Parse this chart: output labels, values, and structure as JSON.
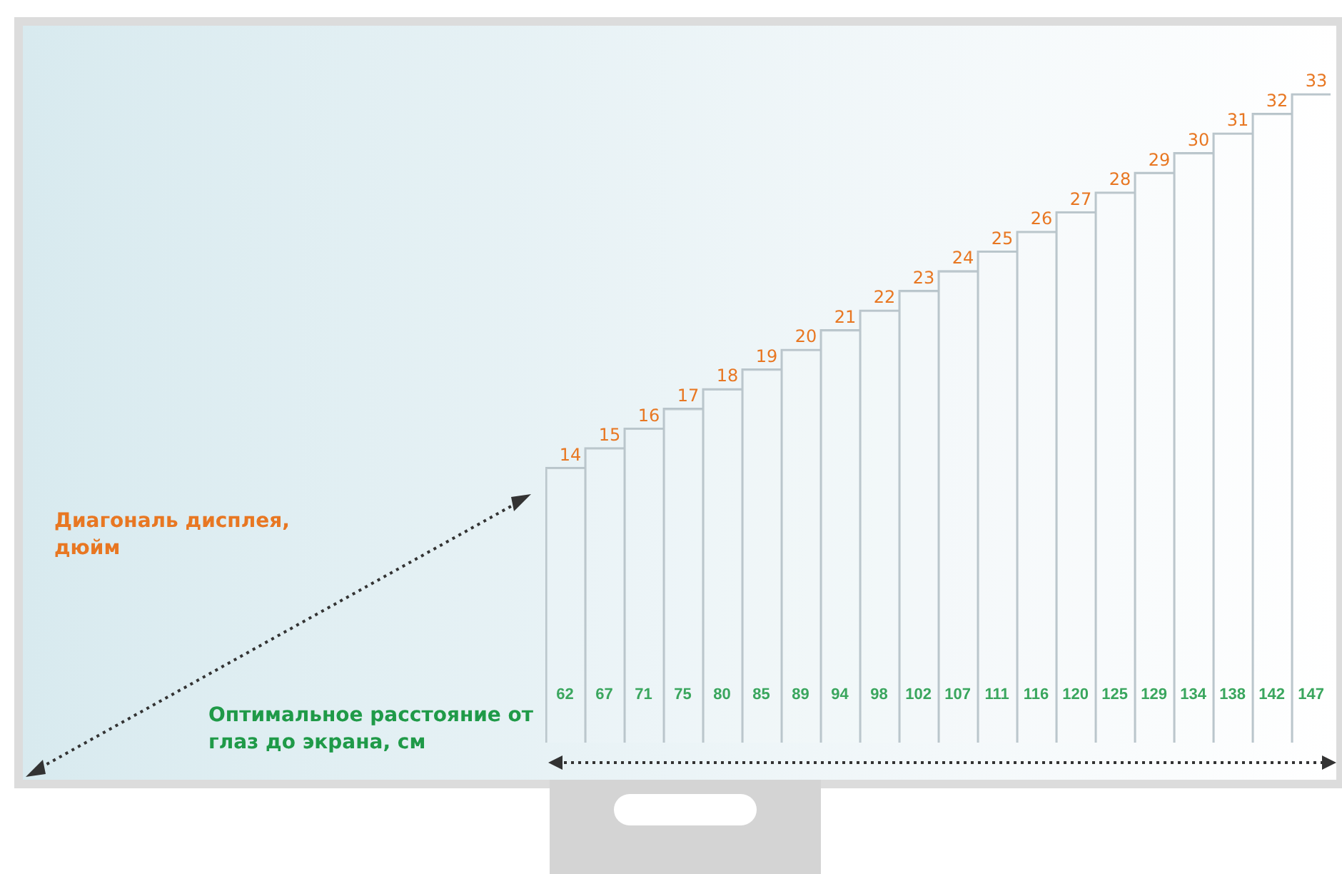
{
  "chart_data": {
    "type": "bar",
    "annotations": [
      "Диагональ дисплея, дюйм",
      "Оптимальное расстояние от глаз до экрана, см"
    ],
    "categories": [
      "62",
      "67",
      "71",
      "75",
      "80",
      "85",
      "89",
      "94",
      "98",
      "102",
      "107",
      "111",
      "116",
      "120",
      "125",
      "129",
      "134",
      "138",
      "142",
      "147"
    ],
    "values": [
      14,
      15,
      16,
      17,
      18,
      19,
      20,
      21,
      22,
      23,
      24,
      25,
      26,
      27,
      28,
      29,
      30,
      31,
      32,
      33
    ],
    "color": "#b8c4ca",
    "tick_labels": "x",
    "data_labels": true,
    "grid": false,
    "legend": false
  }
}
